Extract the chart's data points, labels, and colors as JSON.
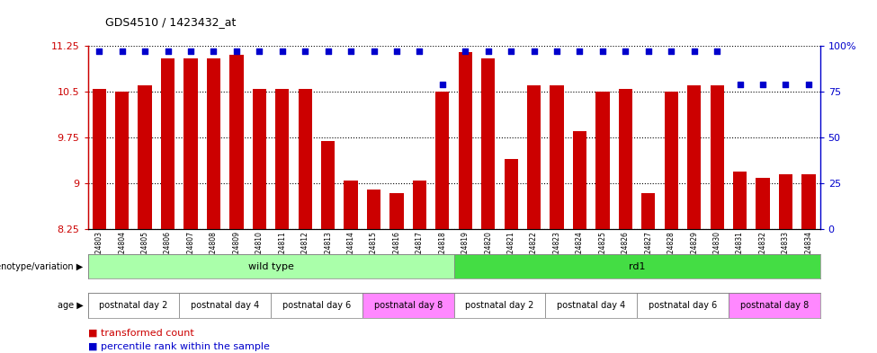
{
  "title": "GDS4510 / 1423432_at",
  "samples": [
    "GSM1024803",
    "GSM1024804",
    "GSM1024805",
    "GSM1024806",
    "GSM1024807",
    "GSM1024808",
    "GSM1024809",
    "GSM1024810",
    "GSM1024811",
    "GSM1024812",
    "GSM1024813",
    "GSM1024814",
    "GSM1024815",
    "GSM1024816",
    "GSM1024817",
    "GSM1024818",
    "GSM1024819",
    "GSM1024820",
    "GSM1024821",
    "GSM1024822",
    "GSM1024823",
    "GSM1024824",
    "GSM1024825",
    "GSM1024826",
    "GSM1024827",
    "GSM1024828",
    "GSM1024829",
    "GSM1024830",
    "GSM1024831",
    "GSM1024832",
    "GSM1024833",
    "GSM1024834"
  ],
  "bar_values": [
    10.55,
    10.5,
    10.6,
    11.05,
    11.05,
    11.05,
    11.1,
    10.55,
    10.55,
    10.55,
    9.7,
    9.05,
    8.9,
    8.85,
    9.05,
    10.5,
    11.15,
    11.05,
    9.4,
    10.6,
    10.6,
    9.85,
    10.5,
    10.55,
    8.85,
    10.5,
    10.6,
    10.6,
    9.2,
    9.1,
    9.15,
    9.15
  ],
  "dot_values": [
    97,
    97,
    97,
    97,
    97,
    97,
    97,
    97,
    97,
    97,
    97,
    97,
    97,
    97,
    97,
    79,
    97,
    97,
    97,
    97,
    97,
    97,
    97,
    97,
    97,
    97,
    97,
    97,
    79,
    79,
    79,
    79
  ],
  "ylim": [
    8.25,
    11.25
  ],
  "yticks": [
    8.25,
    9.0,
    9.75,
    10.5,
    11.25
  ],
  "ytick_labels": [
    "8.25",
    "9",
    "9.75",
    "10.5",
    "11.25"
  ],
  "right_yticks": [
    0,
    25,
    50,
    75,
    100
  ],
  "right_ytick_labels": [
    "0",
    "25",
    "50",
    "75",
    "100%"
  ],
  "bar_color": "#cc0000",
  "dot_color": "#0000cc",
  "bar_width": 0.6,
  "genotype_groups": [
    {
      "label": "wild type",
      "start": 0,
      "end": 16,
      "color": "#aaffaa"
    },
    {
      "label": "rd1",
      "start": 16,
      "end": 32,
      "color": "#44dd44"
    }
  ],
  "age_groups": [
    {
      "label": "postnatal day 2",
      "start": 0,
      "end": 4,
      "color": "#ffffff"
    },
    {
      "label": "postnatal day 4",
      "start": 4,
      "end": 8,
      "color": "#ffffff"
    },
    {
      "label": "postnatal day 6",
      "start": 8,
      "end": 12,
      "color": "#ffffff"
    },
    {
      "label": "postnatal day 8",
      "start": 12,
      "end": 16,
      "color": "#ff88ff"
    },
    {
      "label": "postnatal day 2",
      "start": 16,
      "end": 20,
      "color": "#ffffff"
    },
    {
      "label": "postnatal day 4",
      "start": 20,
      "end": 24,
      "color": "#ffffff"
    },
    {
      "label": "postnatal day 6",
      "start": 24,
      "end": 28,
      "color": "#ffffff"
    },
    {
      "label": "postnatal day 8",
      "start": 28,
      "end": 32,
      "color": "#ff88ff"
    }
  ],
  "bg_color": "#ffffff",
  "tick_color_left": "#cc0000",
  "tick_color_right": "#0000cc"
}
